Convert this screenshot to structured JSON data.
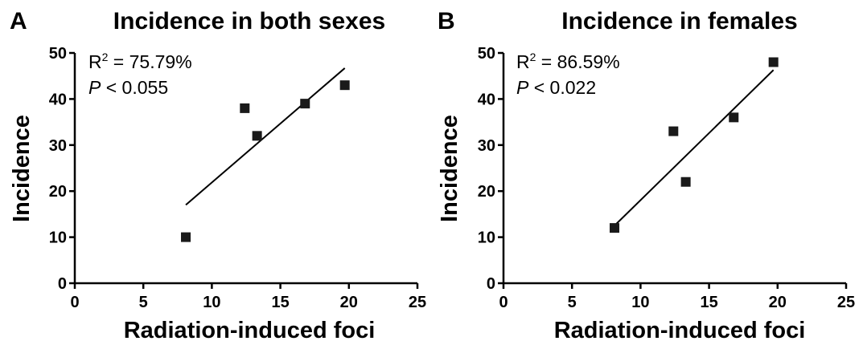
{
  "chart_data": [
    {
      "type": "scatter",
      "panel": "A",
      "title": "Incidence in both sexes",
      "xlabel": "Radiation-induced foci",
      "ylabel": "Incidence",
      "xlim": [
        0,
        25
      ],
      "ylim": [
        0,
        50
      ],
      "xticks": [
        0,
        5,
        10,
        15,
        20,
        25
      ],
      "yticks": [
        0,
        10,
        20,
        30,
        40,
        50
      ],
      "grid": false,
      "points": [
        {
          "x": 8.1,
          "y": 10
        },
        {
          "x": 12.4,
          "y": 38
        },
        {
          "x": 13.3,
          "y": 32
        },
        {
          "x": 16.8,
          "y": 39
        },
        {
          "x": 19.7,
          "y": 43
        }
      ],
      "fit_line": {
        "x": [
          8.1,
          19.7
        ],
        "y": [
          17,
          46.7
        ]
      },
      "annotation": {
        "r2_label": "R",
        "r2_sup": "2",
        "r2_value": " = 75.79%",
        "p_label": "P",
        "p_value": " < 0.055"
      }
    },
    {
      "type": "scatter",
      "panel": "B",
      "title": "Incidence in females",
      "xlabel": "Radiation-induced foci",
      "ylabel": "Incidence",
      "xlim": [
        0,
        25
      ],
      "ylim": [
        0,
        50
      ],
      "xticks": [
        0,
        5,
        10,
        15,
        20,
        25
      ],
      "yticks": [
        0,
        10,
        20,
        30,
        40,
        50
      ],
      "grid": false,
      "points": [
        {
          "x": 8.1,
          "y": 12
        },
        {
          "x": 12.4,
          "y": 33
        },
        {
          "x": 13.3,
          "y": 22
        },
        {
          "x": 16.8,
          "y": 36
        },
        {
          "x": 19.7,
          "y": 48
        }
      ],
      "fit_line": {
        "x": [
          8.1,
          19.7
        ],
        "y": [
          12.5,
          46.3
        ]
      },
      "annotation": {
        "r2_label": "R",
        "r2_sup": "2",
        "r2_value": " = 86.59%",
        "p_label": "P",
        "p_value": " < 0.022"
      }
    }
  ]
}
